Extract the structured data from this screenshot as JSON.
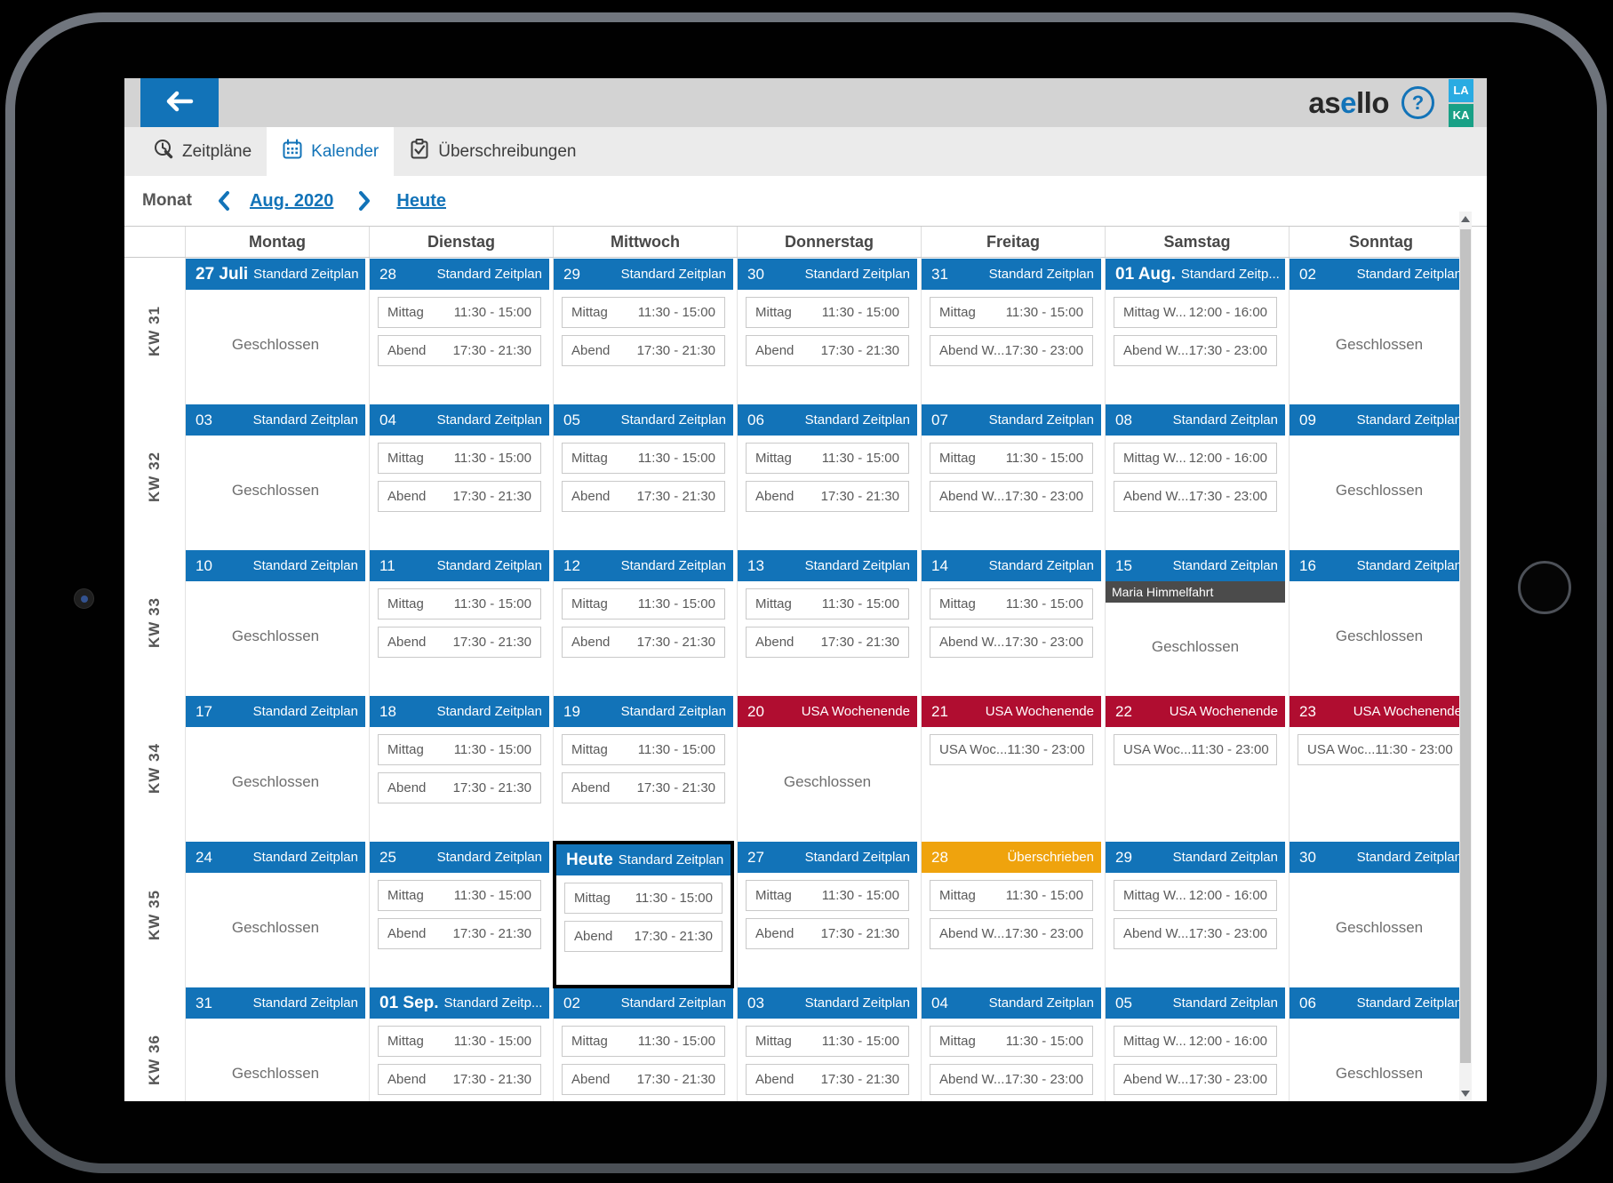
{
  "header": {
    "logo_prefix": "as",
    "logo_accent": "e",
    "logo_suffix": "llo",
    "help_glyph": "?",
    "badges": [
      "LA",
      "KA"
    ],
    "badge_colors": [
      "#29abe2",
      "#18a086"
    ]
  },
  "tabs": [
    {
      "label": "Zeitpläne",
      "icon": "clock-wrench-icon",
      "active": false
    },
    {
      "label": "Kalender",
      "icon": "calendar-icon",
      "active": true
    },
    {
      "label": "Überschreibungen",
      "icon": "clipboard-check-icon",
      "active": false
    }
  ],
  "toolbar": {
    "mode_label": "Monat",
    "month_label": "Aug. 2020",
    "today_label": "Heute"
  },
  "colors": {
    "standard": "#1273b8",
    "usa": "#b00d30",
    "override": "#efa30d",
    "accent_blue": "#1273b8",
    "holiday_banner": "#4b4b4b"
  },
  "calendar": {
    "weekdays": [
      "Montag",
      "Dienstag",
      "Mittwoch",
      "Donnerstag",
      "Freitag",
      "Samstag",
      "Sonntag"
    ],
    "closed_label": "Geschlossen",
    "weeks": [
      {
        "kw": "KW 31",
        "days": [
          {
            "num": "27 Juli",
            "big": true,
            "type": "standard",
            "schedule": "Standard Zeitplan",
            "closed": true
          },
          {
            "num": "28",
            "type": "standard",
            "schedule": "Standard Zeitplan",
            "slots": [
              [
                "Mittag",
                "11:30 - 15:00"
              ],
              [
                "Abend",
                "17:30 - 21:30"
              ]
            ]
          },
          {
            "num": "29",
            "type": "standard",
            "schedule": "Standard Zeitplan",
            "slots": [
              [
                "Mittag",
                "11:30 - 15:00"
              ],
              [
                "Abend",
                "17:30 - 21:30"
              ]
            ]
          },
          {
            "num": "30",
            "type": "standard",
            "schedule": "Standard Zeitplan",
            "slots": [
              [
                "Mittag",
                "11:30 - 15:00"
              ],
              [
                "Abend",
                "17:30 - 21:30"
              ]
            ]
          },
          {
            "num": "31",
            "type": "standard",
            "schedule": "Standard Zeitplan",
            "slots": [
              [
                "Mittag",
                "11:30 - 15:00"
              ],
              [
                "Abend W...",
                "17:30 - 23:00"
              ]
            ]
          },
          {
            "num": "01 Aug.",
            "big": true,
            "type": "standard",
            "schedule": "Standard Zeitp...",
            "slots": [
              [
                "Mittag W...",
                "12:00 - 16:00"
              ],
              [
                "Abend W...",
                "17:30 - 23:00"
              ]
            ]
          },
          {
            "num": "02",
            "type": "standard",
            "schedule": "Standard Zeitplan",
            "closed": true
          }
        ]
      },
      {
        "kw": "KW 32",
        "days": [
          {
            "num": "03",
            "type": "standard",
            "schedule": "Standard Zeitplan",
            "closed": true
          },
          {
            "num": "04",
            "type": "standard",
            "schedule": "Standard Zeitplan",
            "slots": [
              [
                "Mittag",
                "11:30 - 15:00"
              ],
              [
                "Abend",
                "17:30 - 21:30"
              ]
            ]
          },
          {
            "num": "05",
            "type": "standard",
            "schedule": "Standard Zeitplan",
            "slots": [
              [
                "Mittag",
                "11:30 - 15:00"
              ],
              [
                "Abend",
                "17:30 - 21:30"
              ]
            ]
          },
          {
            "num": "06",
            "type": "standard",
            "schedule": "Standard Zeitplan",
            "slots": [
              [
                "Mittag",
                "11:30 - 15:00"
              ],
              [
                "Abend",
                "17:30 - 21:30"
              ]
            ]
          },
          {
            "num": "07",
            "type": "standard",
            "schedule": "Standard Zeitplan",
            "slots": [
              [
                "Mittag",
                "11:30 - 15:00"
              ],
              [
                "Abend W...",
                "17:30 - 23:00"
              ]
            ]
          },
          {
            "num": "08",
            "type": "standard",
            "schedule": "Standard Zeitplan",
            "slots": [
              [
                "Mittag W...",
                "12:00 - 16:00"
              ],
              [
                "Abend W...",
                "17:30 - 23:00"
              ]
            ]
          },
          {
            "num": "09",
            "type": "standard",
            "schedule": "Standard Zeitplan",
            "closed": true
          }
        ]
      },
      {
        "kw": "KW 33",
        "days": [
          {
            "num": "10",
            "type": "standard",
            "schedule": "Standard Zeitplan",
            "closed": true
          },
          {
            "num": "11",
            "type": "standard",
            "schedule": "Standard Zeitplan",
            "slots": [
              [
                "Mittag",
                "11:30 - 15:00"
              ],
              [
                "Abend",
                "17:30 - 21:30"
              ]
            ]
          },
          {
            "num": "12",
            "type": "standard",
            "schedule": "Standard Zeitplan",
            "slots": [
              [
                "Mittag",
                "11:30 - 15:00"
              ],
              [
                "Abend",
                "17:30 - 21:30"
              ]
            ]
          },
          {
            "num": "13",
            "type": "standard",
            "schedule": "Standard Zeitplan",
            "slots": [
              [
                "Mittag",
                "11:30 - 15:00"
              ],
              [
                "Abend",
                "17:30 - 21:30"
              ]
            ]
          },
          {
            "num": "14",
            "type": "standard",
            "schedule": "Standard Zeitplan",
            "slots": [
              [
                "Mittag",
                "11:30 - 15:00"
              ],
              [
                "Abend W...",
                "17:30 - 23:00"
              ]
            ]
          },
          {
            "num": "15",
            "type": "standard",
            "schedule": "Standard Zeitplan",
            "banner": "Maria Himmelfahrt",
            "closed": true
          },
          {
            "num": "16",
            "type": "standard",
            "schedule": "Standard Zeitplan",
            "closed": true
          }
        ]
      },
      {
        "kw": "KW 34",
        "days": [
          {
            "num": "17",
            "type": "standard",
            "schedule": "Standard Zeitplan",
            "closed": true
          },
          {
            "num": "18",
            "type": "standard",
            "schedule": "Standard Zeitplan",
            "slots": [
              [
                "Mittag",
                "11:30 - 15:00"
              ],
              [
                "Abend",
                "17:30 - 21:30"
              ]
            ]
          },
          {
            "num": "19",
            "type": "standard",
            "schedule": "Standard Zeitplan",
            "slots": [
              [
                "Mittag",
                "11:30 - 15:00"
              ],
              [
                "Abend",
                "17:30 - 21:30"
              ]
            ]
          },
          {
            "num": "20",
            "type": "usa",
            "schedule": "USA Wochenende",
            "closed": true
          },
          {
            "num": "21",
            "type": "usa",
            "schedule": "USA Wochenende",
            "slots": [
              [
                "USA Woc...",
                "11:30 - 23:00"
              ]
            ]
          },
          {
            "num": "22",
            "type": "usa",
            "schedule": "USA Wochenende",
            "slots": [
              [
                "USA Woc...",
                "11:30 - 23:00"
              ]
            ]
          },
          {
            "num": "23",
            "type": "usa",
            "schedule": "USA Wochenende",
            "slots": [
              [
                "USA Woc...",
                "11:30 - 23:00"
              ]
            ]
          }
        ]
      },
      {
        "kw": "KW 35",
        "days": [
          {
            "num": "24",
            "type": "standard",
            "schedule": "Standard Zeitplan",
            "closed": true
          },
          {
            "num": "25",
            "type": "standard",
            "schedule": "Standard Zeitplan",
            "slots": [
              [
                "Mittag",
                "11:30 - 15:00"
              ],
              [
                "Abend",
                "17:30 - 21:30"
              ]
            ]
          },
          {
            "num": "Heute",
            "big": true,
            "today": true,
            "type": "standard",
            "schedule": "Standard Zeitplan",
            "slots": [
              [
                "Mittag",
                "11:30 - 15:00"
              ],
              [
                "Abend",
                "17:30 - 21:30"
              ]
            ]
          },
          {
            "num": "27",
            "type": "standard",
            "schedule": "Standard Zeitplan",
            "slots": [
              [
                "Mittag",
                "11:30 - 15:00"
              ],
              [
                "Abend",
                "17:30 - 21:30"
              ]
            ]
          },
          {
            "num": "28",
            "type": "override",
            "schedule": "Überschrieben",
            "slots": [
              [
                "Mittag",
                "11:30 - 15:00"
              ],
              [
                "Abend W...",
                "17:30 - 23:00"
              ]
            ]
          },
          {
            "num": "29",
            "type": "standard",
            "schedule": "Standard Zeitplan",
            "slots": [
              [
                "Mittag W...",
                "12:00 - 16:00"
              ],
              [
                "Abend W...",
                "17:30 - 23:00"
              ]
            ]
          },
          {
            "num": "30",
            "type": "standard",
            "schedule": "Standard Zeitplan",
            "closed": true
          }
        ]
      },
      {
        "kw": "KW 36",
        "days": [
          {
            "num": "31",
            "type": "standard",
            "schedule": "Standard Zeitplan",
            "closed": true
          },
          {
            "num": "01 Sep.",
            "big": true,
            "type": "standard",
            "schedule": "Standard Zeitp...",
            "slots": [
              [
                "Mittag",
                "11:30 - 15:00"
              ],
              [
                "Abend",
                "17:30 - 21:30"
              ]
            ]
          },
          {
            "num": "02",
            "type": "standard",
            "schedule": "Standard Zeitplan",
            "slots": [
              [
                "Mittag",
                "11:30 - 15:00"
              ],
              [
                "Abend",
                "17:30 - 21:30"
              ]
            ]
          },
          {
            "num": "03",
            "type": "standard",
            "schedule": "Standard Zeitplan",
            "slots": [
              [
                "Mittag",
                "11:30 - 15:00"
              ],
              [
                "Abend",
                "17:30 - 21:30"
              ]
            ]
          },
          {
            "num": "04",
            "type": "standard",
            "schedule": "Standard Zeitplan",
            "slots": [
              [
                "Mittag",
                "11:30 - 15:00"
              ],
              [
                "Abend W...",
                "17:30 - 23:00"
              ]
            ]
          },
          {
            "num": "05",
            "type": "standard",
            "schedule": "Standard Zeitplan",
            "slots": [
              [
                "Mittag W...",
                "12:00 - 16:00"
              ],
              [
                "Abend W...",
                "17:30 - 23:00"
              ]
            ]
          },
          {
            "num": "06",
            "type": "standard",
            "schedule": "Standard Zeitplan",
            "closed": true
          }
        ]
      }
    ]
  }
}
